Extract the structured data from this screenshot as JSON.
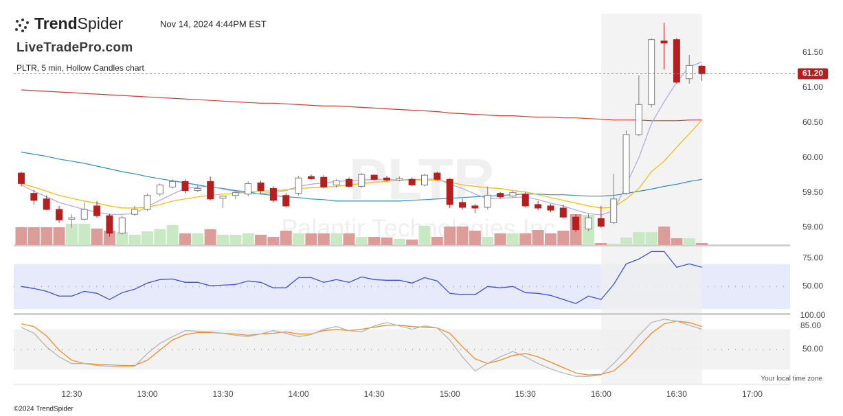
{
  "header": {
    "brand_bold": "Trend",
    "brand_light": "Spider",
    "timestamp": "Nov 14, 2024 4:44PM EST",
    "logo_text": "LiveTradePro.com",
    "chart_label": "PLTR, 5 min, Hollow Candles chart",
    "watermark_symbol": "PLTR",
    "watermark_name": "Palantir Technologies Inc.",
    "timezone_note": "Your local time zone",
    "footer": "©2024 TrendSpider"
  },
  "chart_data": [
    {
      "type": "candlestick",
      "x": [
        "12:10",
        "12:15",
        "12:20",
        "12:25",
        "12:30",
        "12:35",
        "12:40",
        "12:45",
        "12:50",
        "12:55",
        "13:00",
        "13:05",
        "13:10",
        "13:15",
        "13:20",
        "13:25",
        "13:30",
        "13:35",
        "13:40",
        "13:45",
        "13:50",
        "13:55",
        "14:00",
        "14:05",
        "14:10",
        "14:15",
        "14:20",
        "14:25",
        "14:30",
        "14:35",
        "14:40",
        "14:45",
        "14:50",
        "14:55",
        "15:00",
        "15:05",
        "15:10",
        "15:15",
        "15:20",
        "15:25",
        "15:30",
        "15:35",
        "15:40",
        "15:45",
        "15:50",
        "15:55",
        "16:00",
        "16:05",
        "16:10",
        "16:15",
        "16:20",
        "16:25",
        "16:30",
        "16:35",
        "16:40"
      ],
      "open": [
        59.78,
        59.49,
        59.41,
        59.26,
        59.12,
        59.12,
        59.31,
        59.17,
        58.92,
        59.19,
        59.26,
        59.48,
        59.58,
        59.66,
        59.53,
        59.66,
        59.42,
        59.46,
        59.48,
        59.64,
        59.56,
        59.46,
        59.49,
        59.73,
        59.72,
        59.61,
        59.69,
        59.59,
        59.75,
        59.71,
        59.68,
        59.69,
        59.61,
        59.78,
        59.69,
        59.36,
        59.31,
        59.29,
        59.49,
        59.45,
        59.48,
        59.33,
        59.31,
        59.28,
        59.15,
        58.98,
        59.13,
        59.07,
        59.49,
        60.33,
        60.76,
        61.67,
        61.69,
        61.13,
        61.31
      ],
      "high": [
        59.8,
        59.54,
        59.46,
        59.31,
        59.19,
        59.36,
        59.38,
        59.2,
        59.17,
        59.31,
        59.49,
        59.63,
        59.69,
        59.69,
        59.61,
        59.73,
        59.46,
        59.52,
        59.66,
        59.67,
        59.59,
        59.49,
        59.74,
        59.76,
        59.75,
        59.69,
        59.72,
        59.78,
        59.76,
        59.74,
        59.73,
        59.72,
        59.77,
        59.8,
        59.71,
        59.41,
        59.34,
        59.59,
        59.51,
        59.52,
        59.51,
        59.38,
        59.34,
        59.33,
        59.19,
        59.2,
        59.31,
        59.77,
        60.39,
        61.18,
        61.71,
        61.93,
        61.71,
        61.47,
        61.33
      ],
      "low": [
        59.59,
        59.33,
        59.25,
        59.07,
        59.0,
        59.1,
        59.14,
        58.87,
        58.9,
        59.17,
        59.24,
        59.45,
        59.56,
        59.49,
        59.51,
        59.39,
        59.28,
        59.41,
        59.45,
        59.49,
        59.36,
        59.29,
        59.46,
        59.68,
        59.56,
        59.57,
        59.57,
        59.57,
        59.67,
        59.66,
        59.66,
        59.59,
        59.59,
        59.67,
        59.28,
        59.26,
        59.21,
        59.26,
        59.41,
        59.43,
        59.29,
        59.25,
        59.22,
        59.13,
        58.94,
        58.95,
        59.0,
        59.05,
        59.47,
        60.31,
        60.72,
        61.26,
        61.06,
        61.06,
        61.1
      ],
      "close": [
        59.63,
        59.39,
        59.26,
        59.11,
        59.14,
        59.26,
        59.17,
        58.92,
        59.14,
        59.26,
        59.46,
        59.61,
        59.66,
        59.53,
        59.56,
        59.41,
        59.45,
        59.5,
        59.63,
        59.53,
        59.39,
        59.31,
        59.71,
        59.7,
        59.58,
        59.67,
        59.59,
        59.76,
        59.69,
        59.68,
        59.7,
        59.61,
        59.75,
        59.69,
        59.33,
        59.29,
        59.28,
        59.46,
        59.44,
        59.5,
        59.31,
        59.28,
        59.25,
        59.15,
        58.97,
        59.14,
        59.02,
        59.41,
        60.33,
        60.76,
        61.69,
        61.64,
        61.08,
        61.32,
        61.2
      ],
      "up_color": "#ffffff",
      "up_stroke": "#7a7a7a",
      "down_color": "#b5201f",
      "volume": [
        26,
        26,
        26,
        26,
        31,
        31,
        24,
        21,
        19,
        15,
        20,
        23,
        29,
        17,
        17,
        23,
        15,
        15,
        17,
        15,
        12,
        21,
        17,
        17,
        17,
        17,
        17,
        12,
        12,
        11,
        9,
        8,
        28,
        12,
        27,
        27,
        21,
        12,
        17,
        17,
        17,
        22,
        17,
        21,
        45,
        44,
        3,
        2,
        11,
        19,
        19,
        27,
        10,
        10,
        3
      ],
      "volume_lim": [
        0,
        100
      ],
      "volume_up_color": "#c9e8c4",
      "volume_down_color": "#dc9d9a",
      "overlays": [
        {
          "color": "#cf3a2c",
          "values": [
            60.97,
            60.96,
            60.95,
            60.94,
            60.93,
            60.92,
            60.91,
            60.9,
            60.89,
            60.88,
            60.87,
            60.86,
            60.85,
            60.84,
            60.83,
            60.82,
            60.81,
            60.8,
            60.79,
            60.78,
            60.78,
            60.77,
            60.76,
            60.75,
            60.74,
            60.74,
            60.73,
            60.72,
            60.71,
            60.7,
            60.69,
            60.68,
            60.67,
            60.66,
            60.64,
            60.63,
            60.62,
            60.61,
            60.6,
            60.6,
            60.59,
            60.58,
            60.58,
            60.57,
            60.57,
            60.56,
            60.55,
            60.54,
            60.54,
            60.54,
            60.53,
            60.53,
            60.53,
            60.54,
            60.54
          ]
        },
        {
          "color": "#2b8cc4",
          "values": [
            60.08,
            60.05,
            60.02,
            59.98,
            59.95,
            59.92,
            59.88,
            59.84,
            59.8,
            59.77,
            59.73,
            59.7,
            59.67,
            59.64,
            59.61,
            59.58,
            59.56,
            59.53,
            59.51,
            59.48,
            59.46,
            59.44,
            59.43,
            59.41,
            59.4,
            59.38,
            59.38,
            59.38,
            59.38,
            59.38,
            59.38,
            59.39,
            59.4,
            59.41,
            59.42,
            59.43,
            59.44,
            59.45,
            59.46,
            59.47,
            59.48,
            59.48,
            59.47,
            59.47,
            59.46,
            59.45,
            59.45,
            59.46,
            59.49,
            59.52,
            59.55,
            59.59,
            59.62,
            59.66,
            59.69
          ]
        },
        {
          "color": "#f5b800",
          "values": [
            59.63,
            59.58,
            59.52,
            59.46,
            59.42,
            59.38,
            59.35,
            59.31,
            59.28,
            59.28,
            59.29,
            59.33,
            59.38,
            59.41,
            59.44,
            59.46,
            59.48,
            59.49,
            59.51,
            59.52,
            59.53,
            59.54,
            59.56,
            59.57,
            59.58,
            59.59,
            59.61,
            59.63,
            59.65,
            59.66,
            59.68,
            59.68,
            59.68,
            59.68,
            59.65,
            59.61,
            59.59,
            59.57,
            59.56,
            59.53,
            59.51,
            59.47,
            59.43,
            59.39,
            59.35,
            59.31,
            59.28,
            59.29,
            59.41,
            59.56,
            59.8,
            59.95,
            60.15,
            60.34,
            60.54
          ]
        },
        {
          "color": "#aaa6e2",
          "values": [
            59.61,
            59.52,
            59.44,
            59.36,
            59.31,
            59.26,
            59.22,
            59.19,
            59.19,
            59.2,
            59.3,
            59.39,
            59.48,
            59.56,
            59.58,
            59.59,
            59.55,
            59.52,
            59.48,
            59.49,
            59.5,
            59.53,
            59.59,
            59.62,
            59.64,
            59.66,
            59.67,
            59.68,
            59.69,
            59.69,
            59.68,
            59.69,
            59.69,
            59.7,
            59.62,
            59.56,
            59.48,
            59.41,
            59.42,
            59.43,
            59.44,
            59.4,
            59.35,
            59.31,
            59.25,
            59.2,
            59.18,
            59.24,
            59.61,
            60.0,
            60.49,
            60.8,
            61.08,
            61.3,
            61.37
          ]
        }
      ],
      "xlim": [
        "12:07",
        "17:15"
      ],
      "xticks": [
        "12:30",
        "13:00",
        "13:30",
        "14:00",
        "14:30",
        "15:00",
        "15:30",
        "16:00",
        "16:30",
        "17:00"
      ],
      "ylim": [
        58.75,
        62.06
      ],
      "yticks": [
        {
          "value": 59,
          "label": "59.00"
        },
        {
          "value": 59.5,
          "label": "59.50"
        },
        {
          "value": 60,
          "label": "60.00"
        },
        {
          "value": 60.5,
          "label": "60.50"
        },
        {
          "value": 61,
          "label": "61.00"
        },
        {
          "value": 61.5,
          "label": "61.50"
        }
      ],
      "last_price": {
        "value": 61.2,
        "label": "61.20"
      },
      "last_price_color": "#b5201f"
    },
    {
      "type": "line",
      "series": [
        {
          "color": "#3f4fd1",
          "values": [
            50,
            48.2,
            45.7,
            41.5,
            41.5,
            45.7,
            43.9,
            38.4,
            44.5,
            47.6,
            53.0,
            56.1,
            56.7,
            53.7,
            53.7,
            50.6,
            51.2,
            51.8,
            54.9,
            53.7,
            48.8,
            48.8,
            57.9,
            57.9,
            53.7,
            56.1,
            53.7,
            58.5,
            56.1,
            55.5,
            55.5,
            53.0,
            57.9,
            54.9,
            43.9,
            42.7,
            42.7,
            50,
            48.8,
            50,
            44.5,
            43.9,
            42.1,
            38.4,
            34.8,
            41.5,
            38.4,
            51.8,
            70.1,
            74.4,
            81.1,
            81.1,
            67.1,
            70.1,
            67.1
          ]
        }
      ],
      "band": [
        30,
        70
      ],
      "band_color": "#e6eafb",
      "midline": 50,
      "ylim": [
        27,
        85
      ],
      "yticks": [
        {
          "value": 50,
          "label": "50.00"
        },
        {
          "value": 75,
          "label": "75.00"
        }
      ]
    },
    {
      "type": "line",
      "series": [
        {
          "color": "#f08a24",
          "values": [
            88,
            84,
            70,
            49,
            34,
            29,
            28,
            27,
            26,
            26,
            34,
            49,
            64,
            72,
            75,
            75,
            74,
            73,
            71,
            73,
            74,
            76,
            73,
            73,
            78,
            80,
            78,
            80,
            83,
            86,
            86,
            84,
            83,
            82,
            74,
            54,
            36,
            29,
            34,
            41,
            44,
            39,
            31,
            23,
            15,
            12,
            13,
            18,
            34,
            54,
            74,
            88,
            92,
            90,
            84
          ]
        },
        {
          "color": "#b5b5b5",
          "values": [
            83,
            74,
            54,
            39,
            29,
            29,
            26,
            25,
            24,
            25,
            44,
            59,
            69,
            78,
            77,
            76,
            74,
            71,
            69,
            73,
            78,
            74,
            69,
            72,
            80,
            84,
            78,
            76,
            85,
            90,
            85,
            80,
            85,
            82,
            64,
            39,
            18,
            29,
            39,
            47,
            39,
            29,
            21,
            15,
            10,
            10,
            12,
            29,
            49,
            71,
            90,
            95,
            92,
            86,
            80
          ]
        }
      ],
      "band": [
        20,
        80
      ],
      "band_color": "#f2f2f2",
      "midline": 50,
      "ylim": [
        0,
        100
      ],
      "yticks": [
        {
          "value": 50,
          "label": "50.00"
        },
        {
          "value": 100,
          "label": "100.00"
        }
      ],
      "value_tag": {
        "value": 85,
        "label": "85.00"
      }
    }
  ]
}
